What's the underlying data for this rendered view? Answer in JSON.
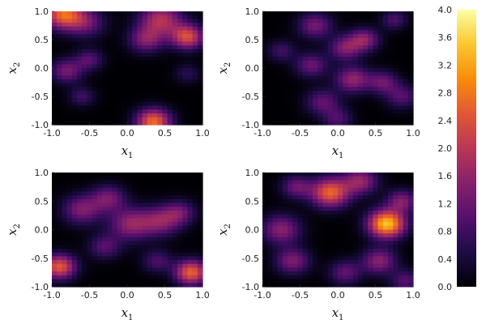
{
  "chart_data": {
    "type": "heatmap",
    "colormap": "inferno",
    "colorbar": {
      "min": 0.0,
      "max": 4.0,
      "ticks": [
        "0.0",
        "0.4",
        "0.8",
        "1.2",
        "1.6",
        "2.0",
        "2.4",
        "2.8",
        "3.2",
        "3.6",
        "4.0"
      ]
    },
    "panels": [
      {
        "xlabel": "x",
        "xlabel_sub": "1",
        "ylabel": "x",
        "ylabel_sub": "2",
        "xlim": [
          -1,
          1
        ],
        "ylim": [
          -1,
          1
        ],
        "xticks": [
          "-1.0",
          "-0.5",
          "0.0",
          "0.5",
          "1.0"
        ],
        "yticks": [
          "-1.0",
          "-0.5",
          "0.0",
          "0.5",
          "1.0"
        ],
        "grid_resolution": 30,
        "blobs": [
          {
            "x": -0.85,
            "y": 0.95,
            "amp": 2.6,
            "sigma": 0.18
          },
          {
            "x": -0.55,
            "y": 0.8,
            "amp": 1.2,
            "sigma": 0.18
          },
          {
            "x": 0.45,
            "y": 0.85,
            "amp": 1.9,
            "sigma": 0.2
          },
          {
            "x": 0.8,
            "y": 0.55,
            "amp": 2.3,
            "sigma": 0.15
          },
          {
            "x": 0.25,
            "y": 0.5,
            "amp": 1.4,
            "sigma": 0.16
          },
          {
            "x": -0.8,
            "y": -0.05,
            "amp": 1.3,
            "sigma": 0.15
          },
          {
            "x": -0.5,
            "y": 0.15,
            "amp": 1.0,
            "sigma": 0.13
          },
          {
            "x": -0.6,
            "y": -0.5,
            "amp": 0.8,
            "sigma": 0.12
          },
          {
            "x": 0.35,
            "y": -0.95,
            "amp": 2.7,
            "sigma": 0.16
          },
          {
            "x": 0.8,
            "y": -0.1,
            "amp": 0.6,
            "sigma": 0.12
          }
        ]
      },
      {
        "xlabel": "x",
        "xlabel_sub": "1",
        "ylabel": "x",
        "ylabel_sub": "2",
        "xlim": [
          -1,
          1
        ],
        "ylim": [
          -1,
          1
        ],
        "xticks": [
          "-1.0",
          "-0.5",
          "0.0",
          "0.5",
          "1.0"
        ],
        "yticks": [
          "-1.0",
          "-0.5",
          "0.0",
          "0.5",
          "1.0"
        ],
        "grid_resolution": 30,
        "blobs": [
          {
            "x": -0.3,
            "y": 0.75,
            "amp": 1.3,
            "sigma": 0.16
          },
          {
            "x": 0.1,
            "y": 0.35,
            "amp": 1.4,
            "sigma": 0.15
          },
          {
            "x": -0.35,
            "y": 0.05,
            "amp": 1.2,
            "sigma": 0.15
          },
          {
            "x": 0.2,
            "y": -0.2,
            "amp": 1.6,
            "sigma": 0.16
          },
          {
            "x": 0.35,
            "y": 0.5,
            "amp": 1.5,
            "sigma": 0.14
          },
          {
            "x": -0.2,
            "y": -0.6,
            "amp": 1.1,
            "sigma": 0.16
          },
          {
            "x": 0.6,
            "y": -0.25,
            "amp": 1.2,
            "sigma": 0.14
          },
          {
            "x": 0.85,
            "y": -0.5,
            "amp": 1.0,
            "sigma": 0.15
          },
          {
            "x": 0.75,
            "y": 0.85,
            "amp": 0.9,
            "sigma": 0.12
          },
          {
            "x": -0.75,
            "y": 0.3,
            "amp": 0.8,
            "sigma": 0.13
          },
          {
            "x": 0.0,
            "y": -0.9,
            "amp": 0.9,
            "sigma": 0.14
          }
        ]
      },
      {
        "xlabel": "x",
        "xlabel_sub": "1",
        "ylabel": "x",
        "ylabel_sub": "2",
        "xlim": [
          -1,
          1
        ],
        "ylim": [
          -1,
          1
        ],
        "xticks": [
          "-1.0",
          "-0.5",
          "0.0",
          "0.5",
          "1.0"
        ],
        "yticks": [
          "-1.0",
          "-0.5",
          "0.0",
          "0.5",
          "1.0"
        ],
        "grid_resolution": 30,
        "blobs": [
          {
            "x": -0.6,
            "y": 0.35,
            "amp": 1.4,
            "sigma": 0.18
          },
          {
            "x": -0.25,
            "y": 0.55,
            "amp": 1.3,
            "sigma": 0.16
          },
          {
            "x": 0.05,
            "y": 0.1,
            "amp": 1.6,
            "sigma": 0.2
          },
          {
            "x": 0.45,
            "y": 0.15,
            "amp": 1.4,
            "sigma": 0.18
          },
          {
            "x": 0.7,
            "y": 0.3,
            "amp": 1.1,
            "sigma": 0.15
          },
          {
            "x": -0.9,
            "y": -0.65,
            "amp": 2.5,
            "sigma": 0.15
          },
          {
            "x": 0.85,
            "y": -0.75,
            "amp": 2.6,
            "sigma": 0.15
          },
          {
            "x": 0.4,
            "y": -0.55,
            "amp": 0.9,
            "sigma": 0.14
          },
          {
            "x": -0.3,
            "y": -0.3,
            "amp": 1.0,
            "sigma": 0.15
          }
        ]
      },
      {
        "xlabel": "x",
        "xlabel_sub": "1",
        "ylabel": "x",
        "ylabel_sub": "2",
        "xlim": [
          -1,
          1
        ],
        "ylim": [
          -1,
          1
        ],
        "xticks": [
          "-1.0",
          "-0.5",
          "0.0",
          "0.5",
          "1.0"
        ],
        "yticks": [
          "-1.0",
          "-0.5",
          "0.0",
          "0.5",
          "1.0"
        ],
        "grid_resolution": 30,
        "blobs": [
          {
            "x": -0.1,
            "y": 0.65,
            "amp": 2.6,
            "sigma": 0.18
          },
          {
            "x": 0.3,
            "y": 0.85,
            "amp": 1.6,
            "sigma": 0.16
          },
          {
            "x": -0.55,
            "y": 0.75,
            "amp": 1.2,
            "sigma": 0.14
          },
          {
            "x": 0.65,
            "y": 0.1,
            "amp": 3.5,
            "sigma": 0.17
          },
          {
            "x": 0.85,
            "y": 0.5,
            "amp": 1.4,
            "sigma": 0.14
          },
          {
            "x": -0.75,
            "y": 0.0,
            "amp": 1.5,
            "sigma": 0.18
          },
          {
            "x": -0.6,
            "y": -0.55,
            "amp": 1.4,
            "sigma": 0.16
          },
          {
            "x": 0.1,
            "y": -0.75,
            "amp": 1.1,
            "sigma": 0.15
          },
          {
            "x": 0.55,
            "y": -0.55,
            "amp": 1.5,
            "sigma": 0.16
          },
          {
            "x": 0.9,
            "y": -0.9,
            "amp": 1.0,
            "sigma": 0.14
          }
        ]
      }
    ]
  }
}
